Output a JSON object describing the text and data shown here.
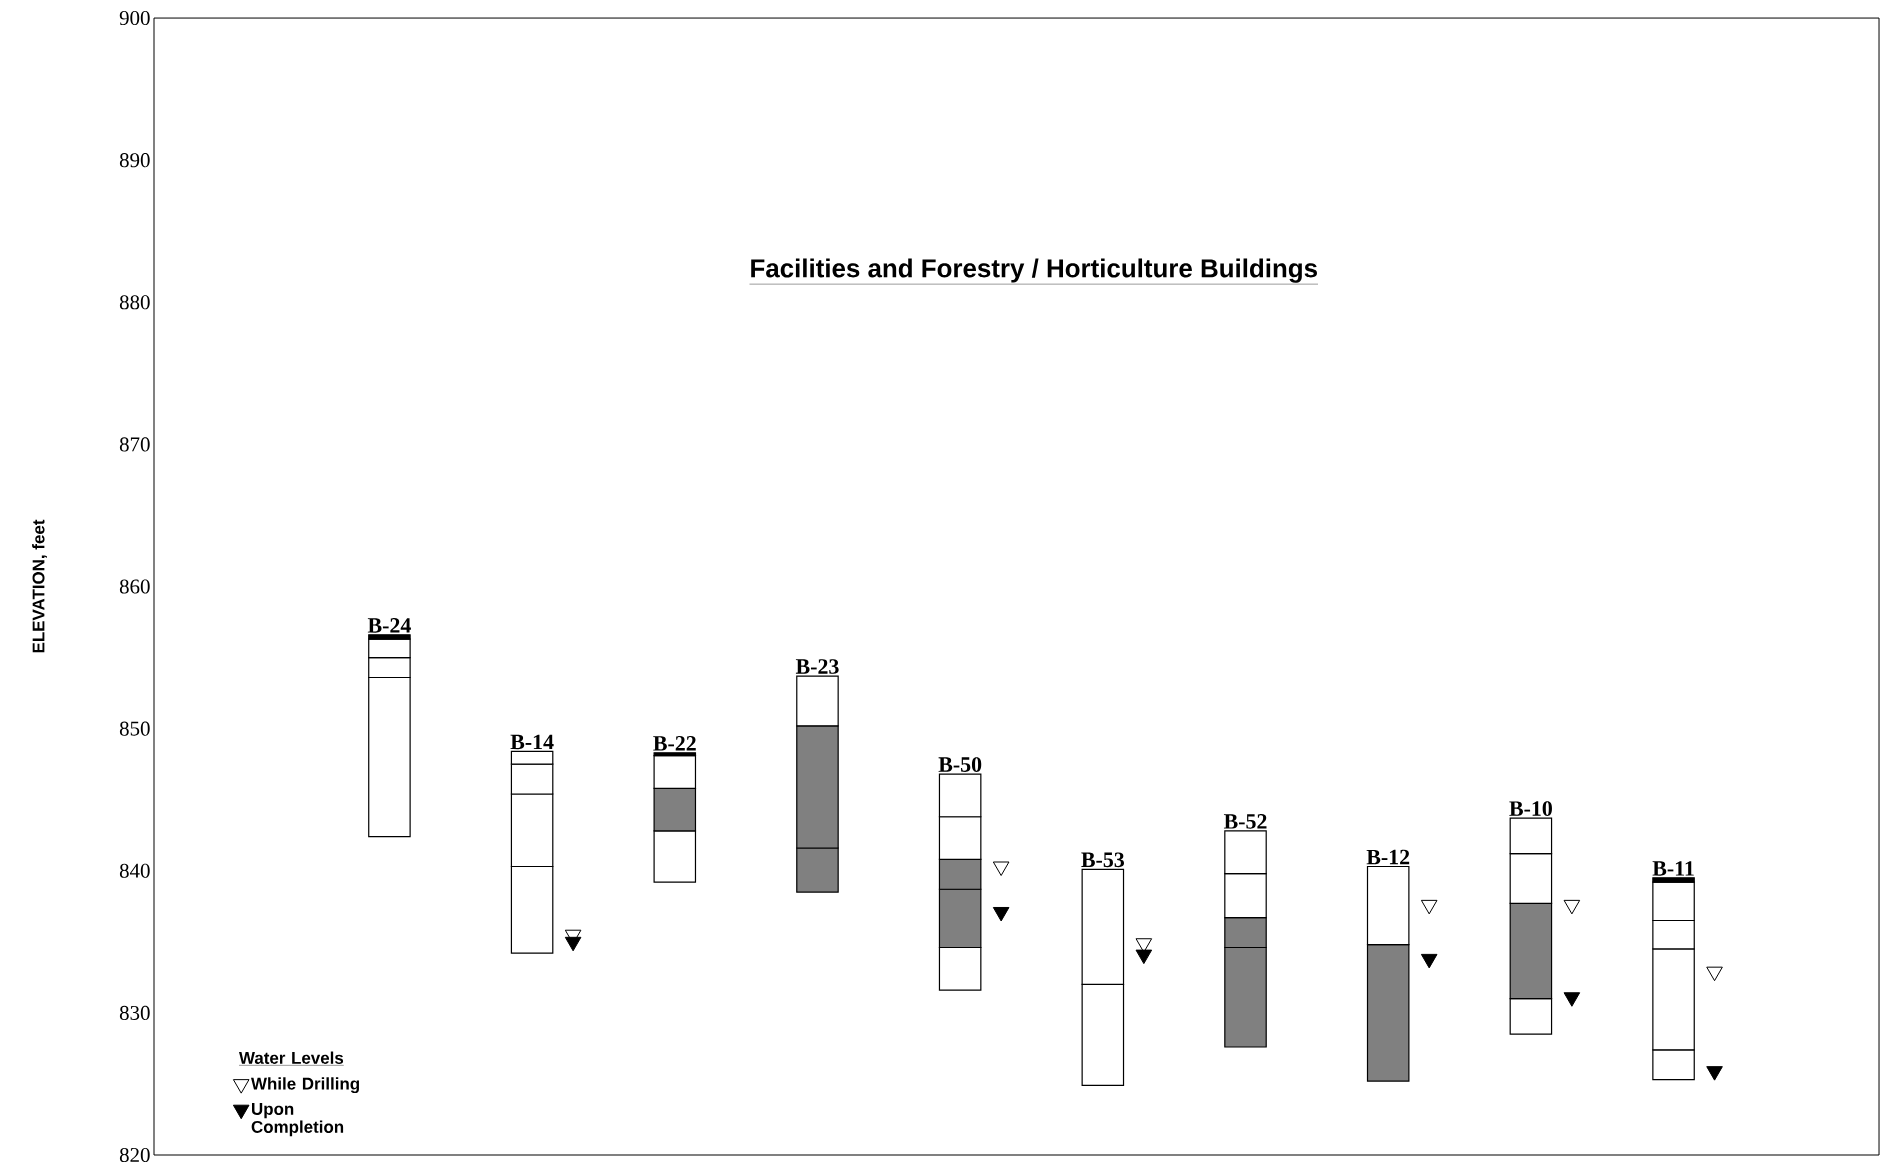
{
  "chart_data": {
    "type": "bar",
    "title": "Facilities and Forestry / Horticulture Buildings",
    "ylabel": "ELEVATION, feet",
    "legend_title": "Water Levels",
    "categories": [
      "B-24",
      "B-14",
      "B-22",
      "B-23",
      "B-50",
      "B-53",
      "B-52",
      "B-12",
      "B-10",
      "B-11"
    ],
    "series": [
      {
        "base": [
          842.4,
          834.2,
          839.2,
          838.5,
          831.6,
          824.9,
          827.6,
          825.2,
          828.5,
          825.3
        ],
        "colors": [
          "#ffffff",
          "#ffffff",
          "#ffffff",
          "#808080",
          "#ffffff",
          "#ffffff",
          "#808080",
          "#808080",
          "#ffffff",
          "#ffffff"
        ],
        "values": [
          11.2,
          6.1,
          3.6,
          3.1,
          3.0,
          7.1,
          7.0,
          9.6,
          2.5,
          2.1
        ]
      },
      {
        "base": [
          853.6,
          840.3,
          842.8,
          841.6,
          834.6,
          832.0,
          834.6,
          834.8,
          831.0,
          827.4
        ],
        "colors": [
          "#ffffff",
          "#ffffff",
          "#808080",
          "#808080",
          "#808080",
          "#ffffff",
          "#808080",
          "#ffffff",
          "#808080",
          "#ffffff"
        ],
        "values": [
          1.4,
          5.1,
          3.0,
          8.6,
          4.1,
          8.1,
          2.1,
          5.5,
          6.7,
          7.1
        ]
      },
      {
        "base": [
          855.0,
          845.4,
          845.8,
          850.2,
          838.7,
          null,
          836.7,
          null,
          837.7,
          834.5
        ],
        "colors": [
          "#ffffff",
          "#ffffff",
          "#ffffff",
          "#ffffff",
          "#808080",
          null,
          "#ffffff",
          null,
          "#ffffff",
          "#ffffff"
        ],
        "values": [
          1.3,
          2.1,
          2.3,
          3.5,
          2.1,
          null,
          3.1,
          null,
          3.5,
          2.0
        ]
      },
      {
        "base": [
          856.3,
          847.5,
          848.1,
          null,
          840.8,
          null,
          839.8,
          null,
          841.2,
          836.5
        ],
        "colors": [
          "#000000",
          "#ffffff",
          "#000000",
          null,
          "#ffffff",
          null,
          "#ffffff",
          null,
          "#ffffff",
          "#ffffff"
        ],
        "values": [
          0.3,
          0.9,
          0.2,
          null,
          3.0,
          null,
          3.0,
          null,
          2.5,
          2.7
        ]
      },
      {
        "base": [
          null,
          null,
          null,
          null,
          843.8,
          null,
          null,
          null,
          null,
          839.2
        ],
        "colors": [
          null,
          null,
          null,
          null,
          "#ffffff",
          null,
          null,
          null,
          null,
          "#000000"
        ],
        "values": [
          null,
          null,
          null,
          null,
          3.0,
          null,
          null,
          null,
          null,
          0.3
        ]
      },
      {
        "type": "scatter",
        "name": "While Drilling",
        "color": "#ffffff",
        "values": [
          null,
          835.5,
          null,
          null,
          840.3,
          834.9,
          null,
          837.6,
          837.6,
          832.9
        ]
      },
      {
        "type": "scatter",
        "name": "Upon Completion",
        "color": "#000000",
        "values": [
          null,
          835.0,
          null,
          null,
          837.1,
          834.1,
          null,
          833.8,
          831.1,
          825.9
        ]
      }
    ],
    "marker": "triangle",
    "legend": "bottom left",
    "tick_labels": "y",
    "ylim": [
      820,
      900
    ],
    "yticks": [
      820,
      830,
      840,
      850,
      860,
      870,
      880,
      890,
      900
    ]
  }
}
